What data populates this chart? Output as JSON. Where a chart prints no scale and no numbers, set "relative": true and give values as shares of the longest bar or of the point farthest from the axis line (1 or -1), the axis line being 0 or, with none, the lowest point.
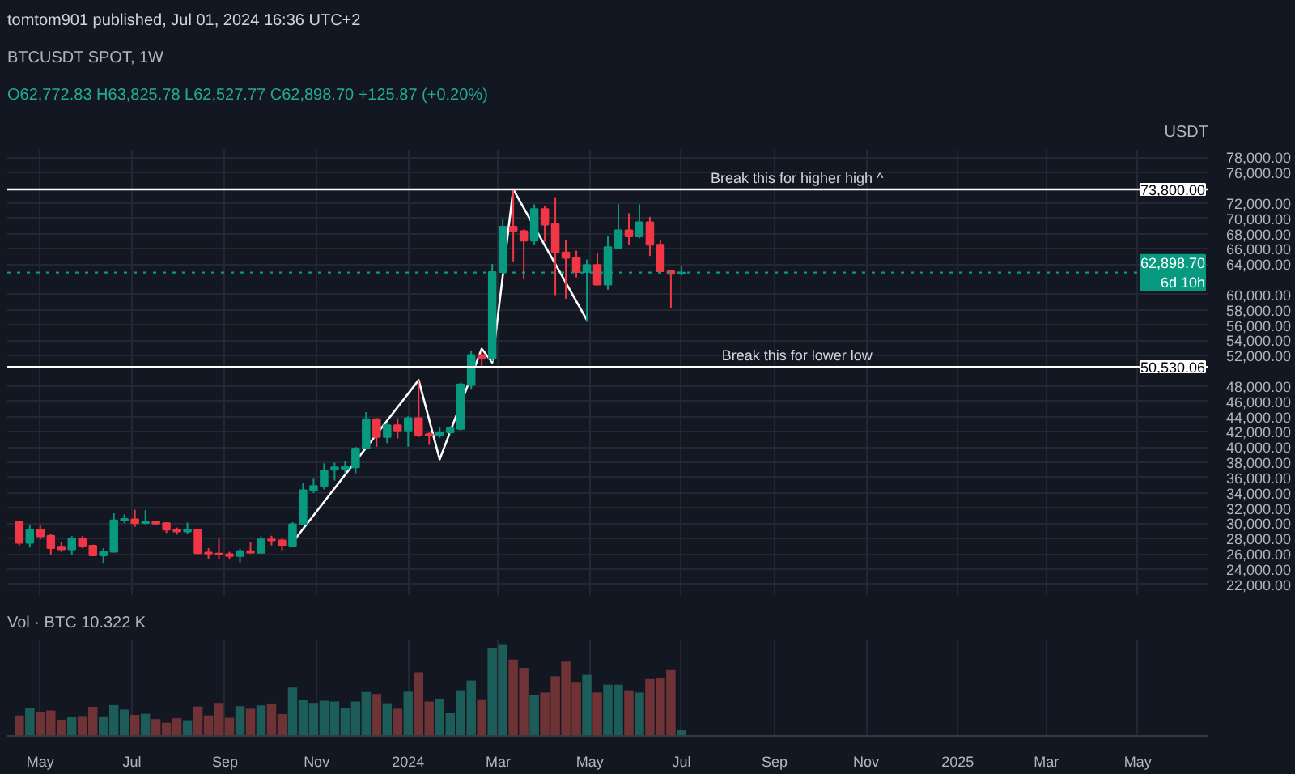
{
  "chart_data": [
    {
      "type": "candlestick",
      "title": "BTCUSDT SPOT, 1W",
      "subtitle": "O62,772.83 H63,825.78 L62,527.77 C62,898.70 +125.87 (+0.20%)",
      "ylabel": "USDT",
      "annotations": [
        "tomtom901 published, Jul 01, 2024 16:36 UTC+2",
        {
          "text": "Break this for higher high ^",
          "x": "2024-09-16",
          "y": 73800
        },
        {
          "text": "Break this for lower low",
          "x": "2024-09-16",
          "y": 50530.06
        }
      ],
      "x": [
        "2023-04-17",
        "2023-04-24",
        "2023-05-01",
        "2023-05-08",
        "2023-05-15",
        "2023-05-22",
        "2023-05-29",
        "2023-06-05",
        "2023-06-12",
        "2023-06-19",
        "2023-06-26",
        "2023-07-03",
        "2023-07-10",
        "2023-07-17",
        "2023-07-24",
        "2023-07-31",
        "2023-08-07",
        "2023-08-14",
        "2023-08-21",
        "2023-08-28",
        "2023-09-04",
        "2023-09-11",
        "2023-09-18",
        "2023-09-25",
        "2023-10-02",
        "2023-10-09",
        "2023-10-16",
        "2023-10-23",
        "2023-10-30",
        "2023-11-06",
        "2023-11-13",
        "2023-11-20",
        "2023-11-27",
        "2023-12-04",
        "2023-12-11",
        "2023-12-18",
        "2023-12-25",
        "2024-01-01",
        "2024-01-08",
        "2024-01-15",
        "2024-01-22",
        "2024-01-29",
        "2024-02-05",
        "2024-02-12",
        "2024-02-19",
        "2024-02-26",
        "2024-03-04",
        "2024-03-11",
        "2024-03-18",
        "2024-03-25",
        "2024-04-01",
        "2024-04-08",
        "2024-04-15",
        "2024-04-22",
        "2024-04-29",
        "2024-05-06",
        "2024-05-13",
        "2024-05-20",
        "2024-05-27",
        "2024-06-03",
        "2024-06-10",
        "2024-06-17",
        "2024-06-24",
        "2024-07-01"
      ],
      "ohlc": [
        [
          30200,
          30340,
          27120,
          27450
        ],
        [
          27450,
          29780,
          26840,
          29170
        ],
        [
          29170,
          29780,
          27910,
          28290
        ],
        [
          28380,
          28610,
          25810,
          26750
        ],
        [
          26840,
          27590,
          26280,
          26600
        ],
        [
          26600,
          28330,
          25900,
          28000
        ],
        [
          28000,
          28330,
          26740,
          26980
        ],
        [
          27070,
          27210,
          25720,
          25810
        ],
        [
          25810,
          26740,
          24730,
          26280
        ],
        [
          26280,
          31320,
          26180,
          30390
        ],
        [
          30390,
          31180,
          30020,
          30580
        ],
        [
          30530,
          31790,
          29550,
          30020
        ],
        [
          30060,
          31740,
          29880,
          30160
        ],
        [
          30200,
          30340,
          29780,
          29970
        ],
        [
          30020,
          30110,
          28750,
          29170
        ],
        [
          29170,
          29450,
          28520,
          28940
        ],
        [
          28940,
          30110,
          28610,
          29170
        ],
        [
          29170,
          29310,
          26000,
          26090
        ],
        [
          26180,
          26740,
          25340,
          26040
        ],
        [
          26040,
          28000,
          25340,
          25950
        ],
        [
          25950,
          26280,
          25340,
          25720
        ],
        [
          25720,
          26650,
          24870,
          26370
        ],
        [
          26370,
          27590,
          26040,
          26180
        ],
        [
          26140,
          28290,
          26040,
          27910
        ],
        [
          27910,
          28380,
          27120,
          27770
        ],
        [
          27770,
          28150,
          26460,
          27070
        ],
        [
          26980,
          30160,
          26880,
          29880
        ],
        [
          29880,
          35250,
          29780,
          34360
        ],
        [
          34360,
          35860,
          33990,
          34920
        ],
        [
          34920,
          37870,
          34460,
          36930
        ],
        [
          37030,
          37960,
          35620,
          37350
        ],
        [
          37170,
          38190,
          36560,
          37400
        ],
        [
          37350,
          40060,
          36560,
          39830
        ],
        [
          39830,
          44600,
          39740,
          43660
        ],
        [
          43660,
          43800,
          40060,
          41330
        ],
        [
          41330,
          43100,
          40530,
          42870
        ],
        [
          42870,
          43800,
          41140,
          42170
        ],
        [
          42170,
          44040,
          40060,
          43800
        ],
        [
          43800,
          48800,
          41330,
          41610
        ],
        [
          41700,
          41930,
          40300,
          41560
        ],
        [
          41560,
          42630,
          41230,
          41930
        ],
        [
          41930,
          42730,
          41700,
          42490
        ],
        [
          42400,
          48480,
          42170,
          48240
        ],
        [
          48150,
          52680,
          47540,
          52070
        ],
        [
          52070,
          52680,
          50440,
          51610
        ],
        [
          51650,
          64040,
          51280,
          62960
        ],
        [
          62960,
          69970,
          62730,
          68900
        ],
        [
          68900,
          73700,
          64360,
          68340
        ],
        [
          68340,
          68570,
          62030,
          67070
        ],
        [
          67070,
          71840,
          66470,
          71230
        ],
        [
          71230,
          71610,
          66930,
          69180
        ],
        [
          69270,
          72780,
          59930,
          65530
        ],
        [
          65530,
          67170,
          59460,
          64830
        ],
        [
          64830,
          65770,
          62260,
          62960
        ],
        [
          62960,
          64600,
          56420,
          63900
        ],
        [
          63900,
          65440,
          61200,
          61330
        ],
        [
          61330,
          67640,
          60630,
          66230
        ],
        [
          66140,
          71840,
          66000,
          68430
        ],
        [
          68430,
          70670,
          66560,
          67640
        ],
        [
          67640,
          71840,
          67400,
          69510
        ],
        [
          69510,
          70210,
          65070,
          66560
        ],
        [
          66560,
          67170,
          62730,
          63060
        ],
        [
          63060,
          63200,
          58290,
          62730
        ],
        [
          62772.83,
          63825.78,
          62527.77,
          62898.7
        ]
      ],
      "colors": [
        "#f23645",
        "#089981",
        "#f23645",
        "#f23645",
        "#f23645",
        "#089981",
        "#f23645",
        "#f23645",
        "#089981",
        "#089981",
        "#089981",
        "#f23645",
        "#089981",
        "#f23645",
        "#f23645",
        "#f23645",
        "#089981",
        "#f23645",
        "#f23645",
        "#f23645",
        "#f23645",
        "#089981",
        "#f23645",
        "#089981",
        "#f23645",
        "#f23645",
        "#089981",
        "#089981",
        "#089981",
        "#089981",
        "#089981",
        "#089981",
        "#089981",
        "#089981",
        "#f23645",
        "#089981",
        "#f23645",
        "#089981",
        "#f23645",
        "#f23645",
        "#089981",
        "#089981",
        "#089981",
        "#089981",
        "#f23645",
        "#089981",
        "#089981",
        "#f23645",
        "#f23645",
        "#089981",
        "#f23645",
        "#f23645",
        "#f23645",
        "#f23645",
        "#089981",
        "#f23645",
        "#089981",
        "#089981",
        "#f23645",
        "#089981",
        "#f23645",
        "#f23645",
        "#f23645",
        "#089981"
      ],
      "series": [
        {
          "type": "line",
          "color": "#ffffff",
          "x": [
            "2023-10-16",
            "2024-01-08",
            "2024-01-22",
            "2024-02-19",
            "2024-02-26",
            "2024-03-11",
            "2024-04-29"
          ],
          "values": [
            27500,
            48800,
            38400,
            52900,
            51100,
            73800,
            56700
          ]
        }
      ],
      "ref_lines": [
        {
          "axis": "y",
          "value": 73800,
          "label": "73,800.00",
          "color": "#ffffff"
        },
        {
          "axis": "y",
          "value": 50530.06,
          "label": "50,530.06",
          "color": "#ffffff"
        },
        {
          "axis": "y",
          "value": 62898.7,
          "label": "62,898.70\n6d 10h",
          "color": "#089981",
          "line_style": "dotted"
        }
      ],
      "xlim": [
        "2023-04-09",
        "2025-06-17"
      ],
      "xticks": [
        "2023-05-01",
        "2023-07-01",
        "2023-09-01",
        "2023-11-01",
        "2024-01-01",
        "2024-03-01",
        "2024-05-01",
        "2024-07-01",
        "2024-09-01",
        "2024-11-01",
        "2025-01-01",
        "2025-03-01",
        "2025-05-01"
      ],
      "ylim": [
        20600,
        79000
      ],
      "yticks": [
        {
          "value": 22000,
          "label": "22,000.00"
        },
        {
          "value": 24000,
          "label": "24,000.00"
        },
        {
          "value": 26000,
          "label": "26,000.00"
        },
        {
          "value": 28000,
          "label": "28,000.00"
        },
        {
          "value": 30000,
          "label": "30,000.00"
        },
        {
          "value": 32000,
          "label": "32,000.00"
        },
        {
          "value": 34000,
          "label": "34,000.00"
        },
        {
          "value": 36000,
          "label": "36,000.00"
        },
        {
          "value": 38000,
          "label": "38,000.00"
        },
        {
          "value": 40000,
          "label": "40,000.00"
        },
        {
          "value": 42000,
          "label": "42,000.00"
        },
        {
          "value": 44000,
          "label": "44,000.00"
        },
        {
          "value": 46000,
          "label": "46,000.00"
        },
        {
          "value": 48000,
          "label": "48,000.00"
        },
        {
          "value": 52000,
          "label": "52,000.00"
        },
        {
          "value": 54000,
          "label": "54,000.00"
        },
        {
          "value": 56000,
          "label": "56,000.00"
        },
        {
          "value": 58000,
          "label": "58,000.00"
        },
        {
          "value": 60000,
          "label": "60,000.00"
        },
        {
          "value": 64000,
          "label": "64,000.00"
        },
        {
          "value": 66000,
          "label": "66,000.00"
        },
        {
          "value": 68000,
          "label": "68,000.00"
        },
        {
          "value": 70000,
          "label": "70,000.00"
        },
        {
          "value": 72000,
          "label": "72,000.00"
        },
        {
          "value": 76000,
          "label": "76,000.00"
        },
        {
          "value": 78000,
          "label": "78,000.00"
        }
      ],
      "tick_labels": "y",
      "grid": true
    },
    {
      "type": "bar",
      "title": "Vol · BTC 10.322 K",
      "relative": true,
      "x": [
        "2023-04-17",
        "2023-04-24",
        "2023-05-01",
        "2023-05-08",
        "2023-05-15",
        "2023-05-22",
        "2023-05-29",
        "2023-06-05",
        "2023-06-12",
        "2023-06-19",
        "2023-06-26",
        "2023-07-03",
        "2023-07-10",
        "2023-07-17",
        "2023-07-24",
        "2023-07-31",
        "2023-08-07",
        "2023-08-14",
        "2023-08-21",
        "2023-08-28",
        "2023-09-04",
        "2023-09-11",
        "2023-09-18",
        "2023-09-25",
        "2023-10-02",
        "2023-10-09",
        "2023-10-16",
        "2023-10-23",
        "2023-10-30",
        "2023-11-06",
        "2023-11-13",
        "2023-11-20",
        "2023-11-27",
        "2023-12-04",
        "2023-12-11",
        "2023-12-18",
        "2023-12-25",
        "2024-01-01",
        "2024-01-08",
        "2024-01-15",
        "2024-01-22",
        "2024-01-29",
        "2024-02-05",
        "2024-02-12",
        "2024-02-19",
        "2024-02-26",
        "2024-03-04",
        "2024-03-11",
        "2024-03-18",
        "2024-03-25",
        "2024-04-01",
        "2024-04-08",
        "2024-04-15",
        "2024-04-22",
        "2024-04-29",
        "2024-05-06",
        "2024-05-13",
        "2024-05-20",
        "2024-05-27",
        "2024-06-03",
        "2024-06-10",
        "2024-06-17",
        "2024-06-24",
        "2024-07-01"
      ],
      "values": [
        0.225,
        0.302,
        0.262,
        0.28,
        0.179,
        0.207,
        0.219,
        0.32,
        0.216,
        0.339,
        0.29,
        0.231,
        0.244,
        0.185,
        0.145,
        0.194,
        0.173,
        0.323,
        0.225,
        0.363,
        0.2,
        0.327,
        0.299,
        0.336,
        0.357,
        0.24,
        0.532,
        0.394,
        0.363,
        0.387,
        0.378,
        0.311,
        0.378,
        0.483,
        0.461,
        0.36,
        0.299,
        0.486,
        0.698,
        0.378,
        0.41,
        0.249,
        0.502,
        0.609,
        0.403,
        0.969,
        1,
        0.839,
        0.747,
        0.449,
        0.477,
        0.655,
        0.816,
        0.594,
        0.671,
        0.477,
        0.563,
        0.563,
        0.502,
        0.477,
        0.625,
        0.64,
        0.732,
        0.062
      ],
      "colors": [
        "#7a3638",
        "#1f655f",
        "#7a3638",
        "#7a3638",
        "#7a3638",
        "#1f655f",
        "#7a3638",
        "#7a3638",
        "#1f655f",
        "#1f655f",
        "#1f655f",
        "#7a3638",
        "#1f655f",
        "#7a3638",
        "#7a3638",
        "#7a3638",
        "#1f655f",
        "#7a3638",
        "#7a3638",
        "#7a3638",
        "#7a3638",
        "#1f655f",
        "#7a3638",
        "#1f655f",
        "#7a3638",
        "#7a3638",
        "#1f655f",
        "#1f655f",
        "#1f655f",
        "#1f655f",
        "#1f655f",
        "#1f655f",
        "#1f655f",
        "#1f655f",
        "#7a3638",
        "#1f655f",
        "#7a3638",
        "#1f655f",
        "#7a3638",
        "#7a3638",
        "#1f655f",
        "#1f655f",
        "#1f655f",
        "#1f655f",
        "#7a3638",
        "#1f655f",
        "#1f655f",
        "#7a3638",
        "#7a3638",
        "#1f655f",
        "#7a3638",
        "#7a3638",
        "#7a3638",
        "#7a3638",
        "#1f655f",
        "#7a3638",
        "#1f655f",
        "#1f655f",
        "#7a3638",
        "#1f655f",
        "#7a3638",
        "#7a3638",
        "#7a3638",
        "#1f655f"
      ],
      "xlim": [
        "2023-04-09",
        "2025-06-17"
      ],
      "xticks": [
        {
          "value": "2023-05-01",
          "label": "May"
        },
        {
          "value": "2023-07-01",
          "label": "Jul"
        },
        {
          "value": "2023-09-01",
          "label": "Sep"
        },
        {
          "value": "2023-11-01",
          "label": "Nov"
        },
        {
          "value": "2024-01-01",
          "label": "2024"
        },
        {
          "value": "2024-03-01",
          "label": "Mar"
        },
        {
          "value": "2024-05-01",
          "label": "May"
        },
        {
          "value": "2024-07-01",
          "label": "Jul"
        },
        {
          "value": "2024-09-01",
          "label": "Sep"
        },
        {
          "value": "2024-11-01",
          "label": "Nov"
        },
        {
          "value": "2025-01-01",
          "label": "2025"
        },
        {
          "value": "2025-03-01",
          "label": "Mar"
        },
        {
          "value": "2025-05-01",
          "label": "May"
        }
      ],
      "grid": "x"
    }
  ]
}
